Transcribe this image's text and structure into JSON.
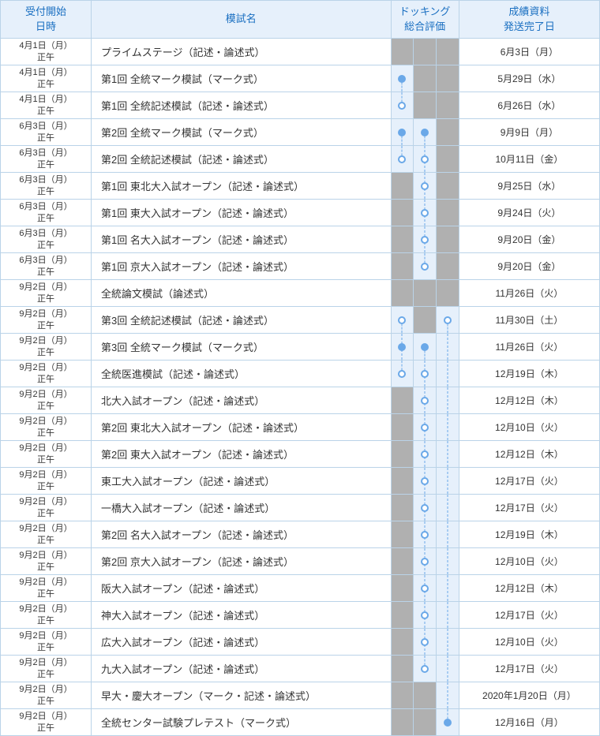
{
  "colors": {
    "border": "#bad3e8",
    "header_bg": "#e6f0fb",
    "header_text": "#1a6fc1",
    "gray_cell": "#b0b0b0",
    "light_cell": "#e6f0fb",
    "dot_color": "#6aa8e8",
    "text": "#333333"
  },
  "headers": {
    "date": "受付開始\n日時",
    "name": "模試名",
    "docking": "ドッキング\n総合評価",
    "ship": "成績資料\n発送完了日"
  },
  "col_widths": {
    "date": 100,
    "name": 330,
    "dock_each": 25,
    "ship": 155
  },
  "rows": [
    {
      "date": "4月1日（月）\n正午",
      "name": "プライムステージ（記述・論述式）",
      "ship": "6月3日（月）",
      "d": [
        {
          "bg": "gray"
        },
        {
          "bg": "gray"
        },
        {
          "bg": "gray"
        }
      ]
    },
    {
      "date": "4月1日（月）\n正午",
      "name": "第1回 全統マーク模試（マーク式）",
      "ship": "5月29日（水）",
      "d": [
        {
          "bg": "light",
          "dot": "filled",
          "line": "down"
        },
        {
          "bg": "gray"
        },
        {
          "bg": "gray"
        }
      ]
    },
    {
      "date": "4月1日（月）\n正午",
      "name": "第1回 全統記述模試（記述・論述式）",
      "ship": "6月26日（水）",
      "d": [
        {
          "bg": "light",
          "dot": "open",
          "line": "up"
        },
        {
          "bg": "gray"
        },
        {
          "bg": "gray"
        }
      ]
    },
    {
      "date": "6月3日（月）\n正午",
      "name": "第2回 全統マーク模試（マーク式）",
      "ship": "9月9日（月）",
      "d": [
        {
          "bg": "light",
          "dot": "filled",
          "line": "down"
        },
        {
          "bg": "light",
          "dot": "filled",
          "line": "down"
        },
        {
          "bg": "gray"
        }
      ]
    },
    {
      "date": "6月3日（月）\n正午",
      "name": "第2回 全統記述模試（記述・論述式）",
      "ship": "10月11日（金）",
      "d": [
        {
          "bg": "light",
          "dot": "open",
          "line": "up"
        },
        {
          "bg": "light",
          "dot": "open",
          "line": "both"
        },
        {
          "bg": "gray"
        }
      ]
    },
    {
      "date": "6月3日（月）\n正午",
      "name": "第1回 東北大入試オープン（記述・論述式）",
      "ship": "9月25日（水）",
      "d": [
        {
          "bg": "gray"
        },
        {
          "bg": "light",
          "dot": "open",
          "line": "both"
        },
        {
          "bg": "gray"
        }
      ]
    },
    {
      "date": "6月3日（月）\n正午",
      "name": "第1回 東大入試オープン（記述・論述式）",
      "ship": "9月24日（火）",
      "d": [
        {
          "bg": "gray"
        },
        {
          "bg": "light",
          "dot": "open",
          "line": "both"
        },
        {
          "bg": "gray"
        }
      ]
    },
    {
      "date": "6月3日（月）\n正午",
      "name": "第1回 名大入試オープン（記述・論述式）",
      "ship": "9月20日（金）",
      "d": [
        {
          "bg": "gray"
        },
        {
          "bg": "light",
          "dot": "open",
          "line": "both"
        },
        {
          "bg": "gray"
        }
      ]
    },
    {
      "date": "6月3日（月）\n正午",
      "name": "第1回 京大入試オープン（記述・論述式）",
      "ship": "9月20日（金）",
      "d": [
        {
          "bg": "gray"
        },
        {
          "bg": "light",
          "dot": "open",
          "line": "up"
        },
        {
          "bg": "gray"
        }
      ]
    },
    {
      "date": "9月2日（月）\n正午",
      "name": "全統論文模試（論述式）",
      "ship": "11月26日（火）",
      "d": [
        {
          "bg": "gray"
        },
        {
          "bg": "gray"
        },
        {
          "bg": "gray"
        }
      ]
    },
    {
      "date": "9月2日（月）\n正午",
      "name": "第3回 全統記述模試（記述・論述式）",
      "ship": "11月30日（土）",
      "d": [
        {
          "bg": "light",
          "dot": "open",
          "line": "down"
        },
        {
          "bg": "gray"
        },
        {
          "bg": "light",
          "dot": "open",
          "line": "down"
        }
      ]
    },
    {
      "date": "9月2日（月）\n正午",
      "name": "第3回 全統マーク模試（マーク式）",
      "ship": "11月26日（火）",
      "d": [
        {
          "bg": "light",
          "dot": "filled",
          "line": "both"
        },
        {
          "bg": "light",
          "dot": "filled",
          "line": "down"
        },
        {
          "bg": "light",
          "line": "both"
        }
      ]
    },
    {
      "date": "9月2日（月）\n正午",
      "name": "全統医進模試（記述・論述式）",
      "ship": "12月19日（木）",
      "d": [
        {
          "bg": "light",
          "dot": "open",
          "line": "up"
        },
        {
          "bg": "light",
          "dot": "open",
          "line": "both"
        },
        {
          "bg": "light",
          "line": "both"
        }
      ]
    },
    {
      "date": "9月2日（月）\n正午",
      "name": "北大入試オープン（記述・論述式）",
      "ship": "12月12日（木）",
      "d": [
        {
          "bg": "gray"
        },
        {
          "bg": "light",
          "dot": "open",
          "line": "both"
        },
        {
          "bg": "light",
          "line": "both"
        }
      ]
    },
    {
      "date": "9月2日（月）\n正午",
      "name": "第2回 東北大入試オープン（記述・論述式）",
      "ship": "12月10日（火）",
      "d": [
        {
          "bg": "gray"
        },
        {
          "bg": "light",
          "dot": "open",
          "line": "both"
        },
        {
          "bg": "light",
          "line": "both"
        }
      ]
    },
    {
      "date": "9月2日（月）\n正午",
      "name": "第2回 東大入試オープン（記述・論述式）",
      "ship": "12月12日（木）",
      "d": [
        {
          "bg": "gray"
        },
        {
          "bg": "light",
          "dot": "open",
          "line": "both"
        },
        {
          "bg": "light",
          "line": "both"
        }
      ]
    },
    {
      "date": "9月2日（月）\n正午",
      "name": "東工大入試オープン（記述・論述式）",
      "ship": "12月17日（火）",
      "d": [
        {
          "bg": "gray"
        },
        {
          "bg": "light",
          "dot": "open",
          "line": "both"
        },
        {
          "bg": "light",
          "line": "both"
        }
      ]
    },
    {
      "date": "9月2日（月）\n正午",
      "name": "一橋大入試オープン（記述・論述式）",
      "ship": "12月17日（火）",
      "d": [
        {
          "bg": "gray"
        },
        {
          "bg": "light",
          "dot": "open",
          "line": "both"
        },
        {
          "bg": "light",
          "line": "both"
        }
      ]
    },
    {
      "date": "9月2日（月）\n正午",
      "name": "第2回 名大入試オープン（記述・論述式）",
      "ship": "12月19日（木）",
      "d": [
        {
          "bg": "gray"
        },
        {
          "bg": "light",
          "dot": "open",
          "line": "both"
        },
        {
          "bg": "light",
          "line": "both"
        }
      ]
    },
    {
      "date": "9月2日（月）\n正午",
      "name": "第2回 京大入試オープン（記述・論述式）",
      "ship": "12月10日（火）",
      "d": [
        {
          "bg": "gray"
        },
        {
          "bg": "light",
          "dot": "open",
          "line": "both"
        },
        {
          "bg": "light",
          "line": "both"
        }
      ]
    },
    {
      "date": "9月2日（月）\n正午",
      "name": "阪大入試オープン（記述・論述式）",
      "ship": "12月12日（木）",
      "d": [
        {
          "bg": "gray"
        },
        {
          "bg": "light",
          "dot": "open",
          "line": "both"
        },
        {
          "bg": "light",
          "line": "both"
        }
      ]
    },
    {
      "date": "9月2日（月）\n正午",
      "name": "神大入試オープン（記述・論述式）",
      "ship": "12月17日（火）",
      "d": [
        {
          "bg": "gray"
        },
        {
          "bg": "light",
          "dot": "open",
          "line": "both"
        },
        {
          "bg": "light",
          "line": "both"
        }
      ]
    },
    {
      "date": "9月2日（月）\n正午",
      "name": "広大入試オープン（記述・論述式）",
      "ship": "12月10日（火）",
      "d": [
        {
          "bg": "gray"
        },
        {
          "bg": "light",
          "dot": "open",
          "line": "both"
        },
        {
          "bg": "light",
          "line": "both"
        }
      ]
    },
    {
      "date": "9月2日（月）\n正午",
      "name": "九大入試オープン（記述・論述式）",
      "ship": "12月17日（火）",
      "d": [
        {
          "bg": "gray"
        },
        {
          "bg": "light",
          "dot": "open",
          "line": "up"
        },
        {
          "bg": "light",
          "line": "both"
        }
      ]
    },
    {
      "date": "9月2日（月）\n正午",
      "name": "早大・慶大オープン（マーク・記述・論述式）",
      "ship": "2020年1月20日（月）",
      "d": [
        {
          "bg": "gray"
        },
        {
          "bg": "gray"
        },
        {
          "bg": "light",
          "line": "both"
        }
      ]
    },
    {
      "date": "9月2日（月）\n正午",
      "name": "全統センター試験プレテスト（マーク式）",
      "ship": "12月16日（月）",
      "d": [
        {
          "bg": "gray"
        },
        {
          "bg": "gray"
        },
        {
          "bg": "light",
          "dot": "filled",
          "line": "up"
        }
      ]
    }
  ]
}
